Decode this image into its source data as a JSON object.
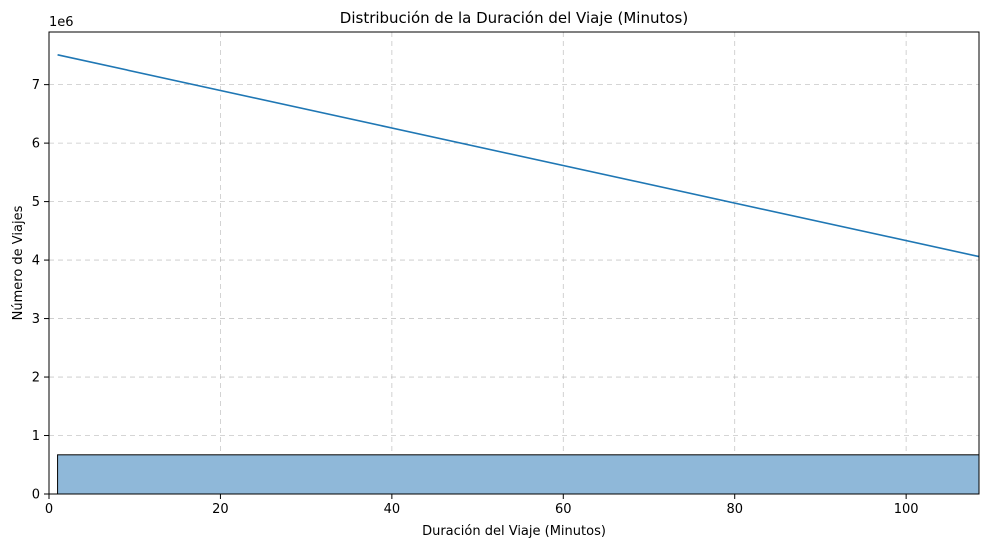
{
  "chart_data": {
    "type": "bar",
    "title": "Distribución de la Duración del Viaje (Minutos)",
    "xlabel": "Duración del Viaje (Minutos)",
    "ylabel": "Número de Viajes",
    "y_offset_label": "1e6",
    "xlim": [
      0,
      108.5
    ],
    "ylim": [
      0,
      7.9
    ],
    "x_ticks": [
      0,
      20,
      40,
      60,
      80,
      100
    ],
    "y_ticks": [
      0,
      1,
      2,
      3,
      4,
      5,
      6,
      7
    ],
    "grid": true,
    "bars": [
      {
        "x_start": 1,
        "x_end": 108.5,
        "value": 0.67
      }
    ],
    "line": {
      "x": [
        1,
        108.5
      ],
      "y": [
        7.51,
        4.06
      ]
    },
    "colors": {
      "bar_fill": "#8fb8d9",
      "bar_edge": "#000000",
      "line": "#1f77b4"
    }
  }
}
